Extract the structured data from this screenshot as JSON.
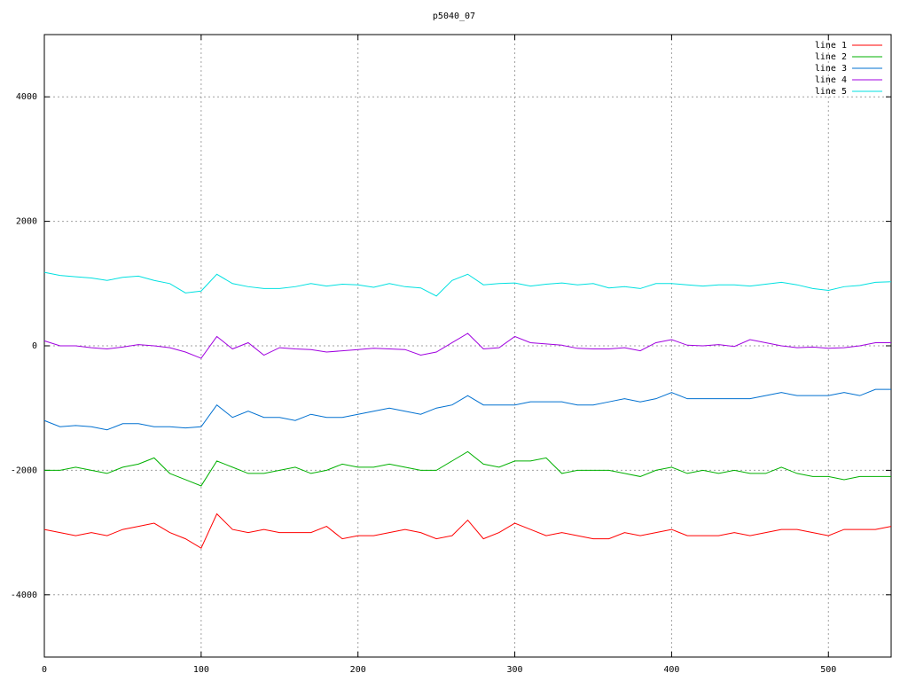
{
  "chart_data": {
    "type": "line",
    "title": "p5040_07",
    "x": [
      0,
      10,
      20,
      30,
      40,
      50,
      60,
      70,
      80,
      90,
      100,
      110,
      120,
      130,
      140,
      150,
      160,
      170,
      180,
      190,
      200,
      210,
      220,
      230,
      240,
      250,
      260,
      270,
      280,
      290,
      300,
      310,
      320,
      330,
      340,
      350,
      360,
      370,
      380,
      390,
      400,
      410,
      420,
      430,
      440,
      450,
      460,
      470,
      480,
      490,
      500,
      510,
      520,
      530,
      540
    ],
    "series": [
      {
        "name": "line 1",
        "color": "#ff0000",
        "values": [
          -2950,
          -3000,
          -3050,
          -3000,
          -3050,
          -2950,
          -2900,
          -2850,
          -3000,
          -3100,
          -3250,
          -2700,
          -2950,
          -3000,
          -2950,
          -3000,
          -3000,
          -3000,
          -2900,
          -3100,
          -3050,
          -3050,
          -3000,
          -2950,
          -3000,
          -3100,
          -3050,
          -2800,
          -3100,
          -3000,
          -2850,
          -2950,
          -3050,
          -3000,
          -3050,
          -3100,
          -3100,
          -3000,
          -3050,
          -3000,
          -2950,
          -3050,
          -3050,
          -3050,
          -3000,
          -3050,
          -3000,
          -2950,
          -2950,
          -3000,
          -3050,
          -2950,
          -2950,
          -2950,
          -2900
        ]
      },
      {
        "name": "line 2",
        "color": "#00b000",
        "values": [
          -2000,
          -2000,
          -1950,
          -2000,
          -2050,
          -1950,
          -1900,
          -1800,
          -2050,
          -2150,
          -2250,
          -1850,
          -1950,
          -2050,
          -2050,
          -2000,
          -1950,
          -2050,
          -2000,
          -1900,
          -1950,
          -1950,
          -1900,
          -1950,
          -2000,
          -2000,
          -1850,
          -1700,
          -1900,
          -1950,
          -1850,
          -1850,
          -1800,
          -2050,
          -2000,
          -2000,
          -2000,
          -2050,
          -2100,
          -2000,
          -1950,
          -2050,
          -2000,
          -2050,
          -2000,
          -2050,
          -2050,
          -1950,
          -2050,
          -2100,
          -2100,
          -2150,
          -2100,
          -2100,
          -2100
        ]
      },
      {
        "name": "line 3",
        "color": "#0070d0",
        "values": [
          -1200,
          -1300,
          -1280,
          -1300,
          -1350,
          -1250,
          -1250,
          -1300,
          -1300,
          -1320,
          -1300,
          -950,
          -1150,
          -1050,
          -1150,
          -1150,
          -1200,
          -1100,
          -1150,
          -1150,
          -1100,
          -1050,
          -1000,
          -1050,
          -1100,
          -1000,
          -950,
          -800,
          -950,
          -950,
          -950,
          -900,
          -900,
          -900,
          -950,
          -950,
          -900,
          -850,
          -900,
          -850,
          -750,
          -850,
          -850,
          -850,
          -850,
          -850,
          -800,
          -750,
          -800,
          -800,
          -800,
          -750,
          -800,
          -700,
          -700
        ]
      },
      {
        "name": "line 4",
        "color": "#a000e0",
        "values": [
          80,
          0,
          0,
          -30,
          -50,
          -20,
          20,
          0,
          -30,
          -100,
          -200,
          150,
          -50,
          50,
          -150,
          -30,
          -50,
          -60,
          -100,
          -80,
          -60,
          -40,
          -50,
          -60,
          -150,
          -100,
          50,
          200,
          -50,
          -30,
          150,
          50,
          30,
          10,
          -40,
          -50,
          -50,
          -30,
          -80,
          50,
          100,
          10,
          0,
          20,
          -10,
          100,
          50,
          0,
          -30,
          -20,
          -40,
          -30,
          0,
          50,
          50
        ]
      },
      {
        "name": "line 5",
        "color": "#00e0e0",
        "values": [
          1180,
          1130,
          1110,
          1090,
          1050,
          1100,
          1120,
          1050,
          1000,
          850,
          880,
          1150,
          1000,
          950,
          920,
          920,
          950,
          1000,
          960,
          990,
          980,
          940,
          1000,
          950,
          930,
          800,
          1050,
          1150,
          980,
          1000,
          1010,
          960,
          990,
          1010,
          980,
          1000,
          930,
          950,
          920,
          1000,
          1000,
          980,
          960,
          980,
          980,
          960,
          990,
          1020,
          980,
          920,
          890,
          950,
          970,
          1020,
          1030
        ]
      }
    ],
    "xlim": [
      0,
      540
    ],
    "ylim": [
      -5000,
      5000
    ],
    "xticks": [
      0,
      100,
      200,
      300,
      400,
      500
    ],
    "yticks": [
      -4000,
      -2000,
      0,
      2000,
      4000
    ],
    "grid": true,
    "legend": "top-right"
  }
}
